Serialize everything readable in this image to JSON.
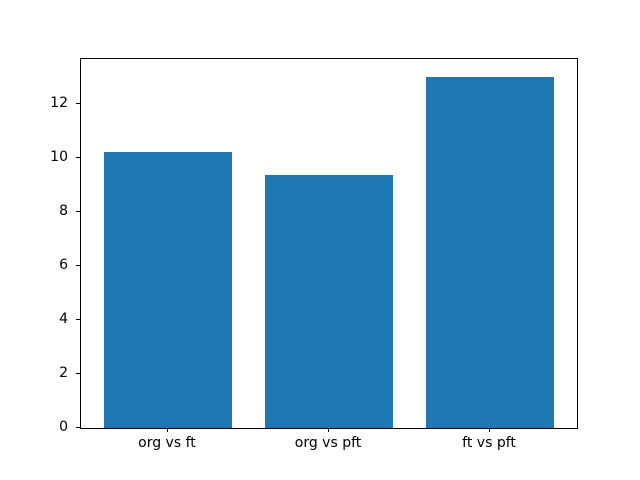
{
  "chart_data": {
    "type": "bar",
    "title": "",
    "xlabel": "",
    "ylabel": "",
    "categories": [
      "org vs ft",
      "org vs pft",
      "ft vs pft"
    ],
    "values": [
      10.2,
      9.35,
      13.0
    ],
    "ylim": [
      0,
      13.65
    ],
    "xlim": [
      -0.54,
      2.54
    ],
    "yticks": [
      0,
      2,
      4,
      6,
      8,
      10,
      12
    ],
    "bar_width_fraction": 0.8,
    "bar_color": "#1f77b4",
    "spine_color": "#000000",
    "tick_label_color": "#000000",
    "background_color": "#ffffff",
    "grid": false,
    "legend": null
  }
}
